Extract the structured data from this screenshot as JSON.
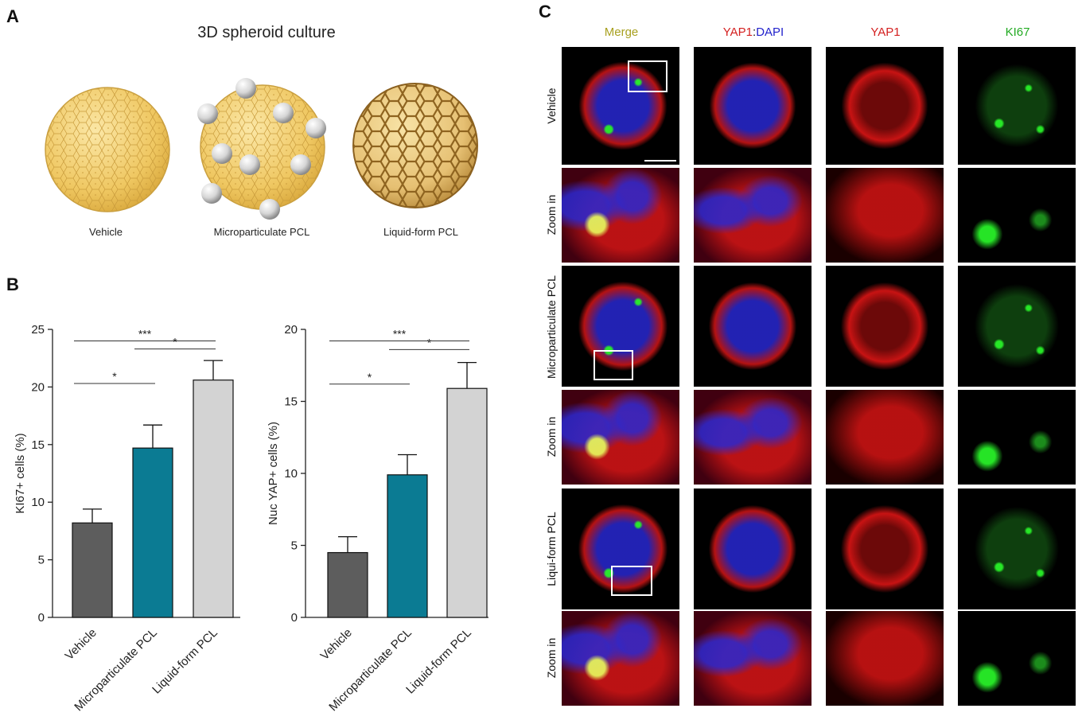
{
  "figure": {
    "panel_a": {
      "letter": "A",
      "title": "3D spheroid culture",
      "labels": [
        "Vehicle",
        "Microparticulate PCL",
        "Liquid-form PCL"
      ]
    },
    "panel_b": {
      "letter": "B"
    },
    "panel_c": {
      "letter": "C",
      "columns": {
        "merge": "Merge",
        "yap1_dapi_a": "YAP1",
        "sep": ":",
        "yap1_dapi_b": "DAPI",
        "yap1": "YAP1",
        "ki67": "KI67"
      },
      "rows": [
        "Vehicle",
        "Zoom in",
        "Microparticulate PCL",
        "Zoom in",
        "Liqui-form PCL",
        "Zoom in"
      ],
      "colors": {
        "merge": "#a8a020",
        "yap1": "#d42020",
        "dapi": "#2222cc",
        "ki67": "#22aa22"
      }
    }
  },
  "chart_data": [
    {
      "type": "bar",
      "categories": [
        "Vehicle",
        "Microparticulate PCL",
        "Liquid-form PCL"
      ],
      "values": [
        8.2,
        14.7,
        20.6
      ],
      "errors": [
        1.2,
        2.0,
        1.7
      ],
      "colors": [
        "#5d5d5d",
        "#0b7b93",
        "#d3d3d3"
      ],
      "ylabel": "KI67+ cells (%)",
      "ylim": [
        0,
        25
      ],
      "yticks": [
        0,
        5,
        10,
        15,
        20,
        25
      ],
      "significance": [
        {
          "from": 0,
          "to": 1,
          "level": 20.3,
          "label": "*"
        },
        {
          "from": 1,
          "to": 2,
          "level": 23.3,
          "label": "*"
        },
        {
          "from": 0,
          "to": 2,
          "level": 24.0,
          "label": "***"
        }
      ]
    },
    {
      "type": "bar",
      "categories": [
        "Vehicle",
        "Microparticulate PCL",
        "Liquid-form PCL"
      ],
      "values": [
        4.5,
        9.9,
        15.9
      ],
      "errors": [
        1.1,
        1.4,
        1.8
      ],
      "colors": [
        "#5d5d5d",
        "#0b7b93",
        "#d3d3d3"
      ],
      "ylabel": "Nuc YAP+ cells (%)",
      "ylim": [
        0,
        20
      ],
      "yticks": [
        0,
        5,
        10,
        15,
        20
      ],
      "significance": [
        {
          "from": 0,
          "to": 1,
          "level": 16.2,
          "label": "*"
        },
        {
          "from": 1,
          "to": 2,
          "level": 18.6,
          "label": "*"
        },
        {
          "from": 0,
          "to": 2,
          "level": 19.2,
          "label": "***"
        }
      ]
    }
  ]
}
